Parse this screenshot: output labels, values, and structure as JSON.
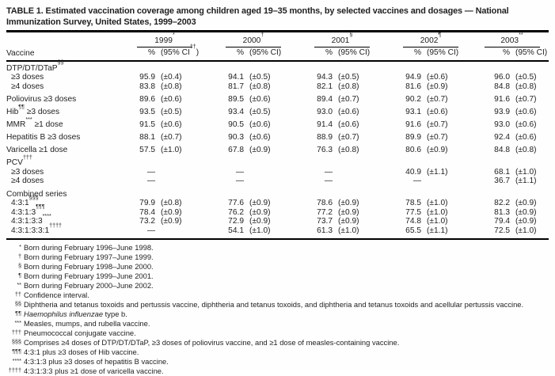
{
  "page": {
    "background": "#fefefe",
    "text_color": "#1f1f1f",
    "rule_color": "#000000"
  },
  "table": {
    "title_line1": "TABLE 1. Estimated vaccination coverage among children aged 19–35 months, by selected vaccines and dosages — National",
    "title_line2": "Immunization Survey, United States, 1999–2003",
    "vaccine_header": "Vaccine",
    "years": [
      {
        "name": "1999",
        "sup": "*",
        "pct_label": "%",
        "ci_label": "(95% CI",
        "ci_sup": "††",
        "ci_close": ")"
      },
      {
        "name": "2000",
        "sup": "†",
        "pct_label": "%",
        "ci_label": "(95% CI)"
      },
      {
        "name": "2001",
        "sup": "§",
        "pct_label": "%",
        "ci_label": "(95% CI)"
      },
      {
        "name": "2002",
        "sup": "¶",
        "pct_label": "%",
        "ci_label": "(95% CI)"
      },
      {
        "name": "2003",
        "sup": "**",
        "pct_label": "%",
        "ci_label": "(95% CI)"
      }
    ],
    "rows": [
      {
        "label": [
          {
            "t": "DTP/DT/DTaP"
          },
          {
            "t": "§§",
            "sup": true
          }
        ],
        "section": true
      },
      {
        "label": [
          {
            "t": "≥3 doses"
          }
        ],
        "indent": true,
        "cells": [
          [
            "95.9",
            "(±0.4)"
          ],
          [
            "94.1",
            "(±0.5)"
          ],
          [
            "94.3",
            "(±0.5)"
          ],
          [
            "94.9",
            "(±0.6)"
          ],
          [
            "96.0",
            "(±0.5)"
          ]
        ]
      },
      {
        "label": [
          {
            "t": "≥4 doses"
          }
        ],
        "indent": true,
        "cells": [
          [
            "83.8",
            "(±0.8)"
          ],
          [
            "81.7",
            "(±0.8)"
          ],
          [
            "82.1",
            "(±0.8)"
          ],
          [
            "81.6",
            "(±0.9)"
          ],
          [
            "84.8",
            "(±0.8)"
          ]
        ]
      },
      {
        "label": [
          {
            "t": "Poliovirus ≥3 doses"
          }
        ],
        "space": true,
        "cells": [
          [
            "89.6",
            "(±0.6)"
          ],
          [
            "89.5",
            "(±0.6)"
          ],
          [
            "89.4",
            "(±0.7)"
          ],
          [
            "90.2",
            "(±0.7)"
          ],
          [
            "91.6",
            "(±0.7)"
          ]
        ]
      },
      {
        "label": [
          {
            "t": "Hib"
          },
          {
            "t": "¶¶",
            "sup": true
          },
          {
            "t": " ≥3 doses"
          }
        ],
        "space": true,
        "cells": [
          [
            "93.5",
            "(±0.5)"
          ],
          [
            "93.4",
            "(±0.5)"
          ],
          [
            "93.0",
            "(±0.6)"
          ],
          [
            "93.1",
            "(±0.6)"
          ],
          [
            "93.9",
            "(±0.6)"
          ]
        ]
      },
      {
        "label": [
          {
            "t": "MMR"
          },
          {
            "t": "***",
            "sup": true
          },
          {
            "t": " ≥1 dose"
          }
        ],
        "space": true,
        "cells": [
          [
            "91.5",
            "(±0.6)"
          ],
          [
            "90.5",
            "(±0.6)"
          ],
          [
            "91.4",
            "(±0.6)"
          ],
          [
            "91.6",
            "(±0.7)"
          ],
          [
            "93.0",
            "(±0.6)"
          ]
        ]
      },
      {
        "label": [
          {
            "t": "Hepatitis B ≥3 doses"
          }
        ],
        "space": true,
        "cells": [
          [
            "88.1",
            "(±0.7)"
          ],
          [
            "90.3",
            "(±0.6)"
          ],
          [
            "88.9",
            "(±0.7)"
          ],
          [
            "89.9",
            "(±0.7)"
          ],
          [
            "92.4",
            "(±0.6)"
          ]
        ]
      },
      {
        "label": [
          {
            "t": "Varicella ≥1 dose"
          }
        ],
        "space": true,
        "cells": [
          [
            "57.5",
            "(±1.0)"
          ],
          [
            "67.8",
            "(±0.9)"
          ],
          [
            "76.3",
            "(±0.8)"
          ],
          [
            "80.6",
            "(±0.9)"
          ],
          [
            "84.8",
            "(±0.8)"
          ]
        ]
      },
      {
        "label": [
          {
            "t": "PCV"
          },
          {
            "t": "†††",
            "sup": true
          }
        ],
        "section": true,
        "space": true
      },
      {
        "label": [
          {
            "t": "≥3 doses"
          }
        ],
        "indent": true,
        "cells": [
          "—",
          "—",
          "—",
          [
            "40.9",
            "(±1.1)"
          ],
          [
            "68.1",
            "(±1.0)"
          ]
        ]
      },
      {
        "label": [
          {
            "t": "≥4 doses"
          }
        ],
        "indent": true,
        "cells": [
          "—",
          "—",
          "—",
          "—",
          [
            "36.7",
            "(±1.1)"
          ]
        ]
      },
      {
        "label": [
          {
            "t": "Combined series"
          }
        ],
        "section": true,
        "space": true
      },
      {
        "label": [
          {
            "t": "4:3:1"
          },
          {
            "t": "§§§",
            "sup": true
          }
        ],
        "indent": true,
        "cells": [
          [
            "79.9",
            "(±0.8)"
          ],
          [
            "77.6",
            "(±0.9)"
          ],
          [
            "78.6",
            "(±0.9)"
          ],
          [
            "78.5",
            "(±1.0)"
          ],
          [
            "82.2",
            "(±0.9)"
          ]
        ]
      },
      {
        "label": [
          {
            "t": "4:3:1:3"
          },
          {
            "t": "¶¶¶",
            "sup": true
          }
        ],
        "indent": true,
        "cells": [
          [
            "78.4",
            "(±0.9)"
          ],
          [
            "76.2",
            "(±0.9)"
          ],
          [
            "77.2",
            "(±0.9)"
          ],
          [
            "77.5",
            "(±1.0)"
          ],
          [
            "81.3",
            "(±0.9)"
          ]
        ]
      },
      {
        "label": [
          {
            "t": "4:3:1:3:3"
          },
          {
            "t": "****",
            "sup": true
          }
        ],
        "indent": true,
        "cells": [
          [
            "73.2",
            "(±0.9)"
          ],
          [
            "72.9",
            "(±0.9)"
          ],
          [
            "73.7",
            "(±0.9)"
          ],
          [
            "74.8",
            "(±1.0)"
          ],
          [
            "79.4",
            "(±0.9)"
          ]
        ]
      },
      {
        "label": [
          {
            "t": "4:3:1:3:3:1"
          },
          {
            "t": "††††",
            "sup": true
          }
        ],
        "indent": true,
        "cells": [
          "—",
          [
            "54.1",
            "(±1.0)"
          ],
          [
            "61.3",
            "(±1.0)"
          ],
          [
            "65.5",
            "(±1.1)"
          ],
          [
            "72.5",
            "(±1.0)"
          ]
        ]
      }
    ],
    "footnotes": [
      {
        "marker": "*",
        "parts": [
          {
            "t": "Born during February 1996–June 1998."
          }
        ]
      },
      {
        "marker": "†",
        "parts": [
          {
            "t": "Born during February 1997–June 1999."
          }
        ]
      },
      {
        "marker": "§",
        "parts": [
          {
            "t": "Born during February 1998–June 2000."
          }
        ]
      },
      {
        "marker": "¶",
        "parts": [
          {
            "t": "Born during February 1999–June 2001."
          }
        ]
      },
      {
        "marker": "**",
        "parts": [
          {
            "t": "Born during February 2000–June 2002."
          }
        ]
      },
      {
        "marker": "††",
        "parts": [
          {
            "t": "Confidence interval."
          }
        ]
      },
      {
        "marker": "§§",
        "parts": [
          {
            "t": "Diphtheria and tetanus toxoids and pertussis vaccine, diphtheria and tetanus toxoids, and diphtheria and tetanus toxoids and acellular pertussis vaccine."
          }
        ]
      },
      {
        "marker": "¶¶",
        "parts": [
          {
            "t": "Haemophilus influenzae",
            "italic": true
          },
          {
            "t": " type b."
          }
        ]
      },
      {
        "marker": "***",
        "parts": [
          {
            "t": "Measles, mumps, and rubella vaccine."
          }
        ]
      },
      {
        "marker": "†††",
        "parts": [
          {
            "t": "Pneumococcal conjugate vaccine."
          }
        ]
      },
      {
        "marker": "§§§",
        "parts": [
          {
            "t": "Comprises ≥4 doses of DTP/DT/DTaP, ≥3 doses of poliovirus vaccine, and ≥1 dose of measles-containing vaccine."
          }
        ]
      },
      {
        "marker": "¶¶¶",
        "parts": [
          {
            "t": "4:3:1 plus ≥3 doses of Hib vaccine."
          }
        ]
      },
      {
        "marker": "****",
        "parts": [
          {
            "t": "4:3:1:3 plus ≥3 doses of hepatitis B vaccine."
          }
        ]
      },
      {
        "marker": "††††",
        "parts": [
          {
            "t": "4:3:1:3:3 plus ≥1 dose of varicella vaccine."
          }
        ]
      }
    ]
  }
}
